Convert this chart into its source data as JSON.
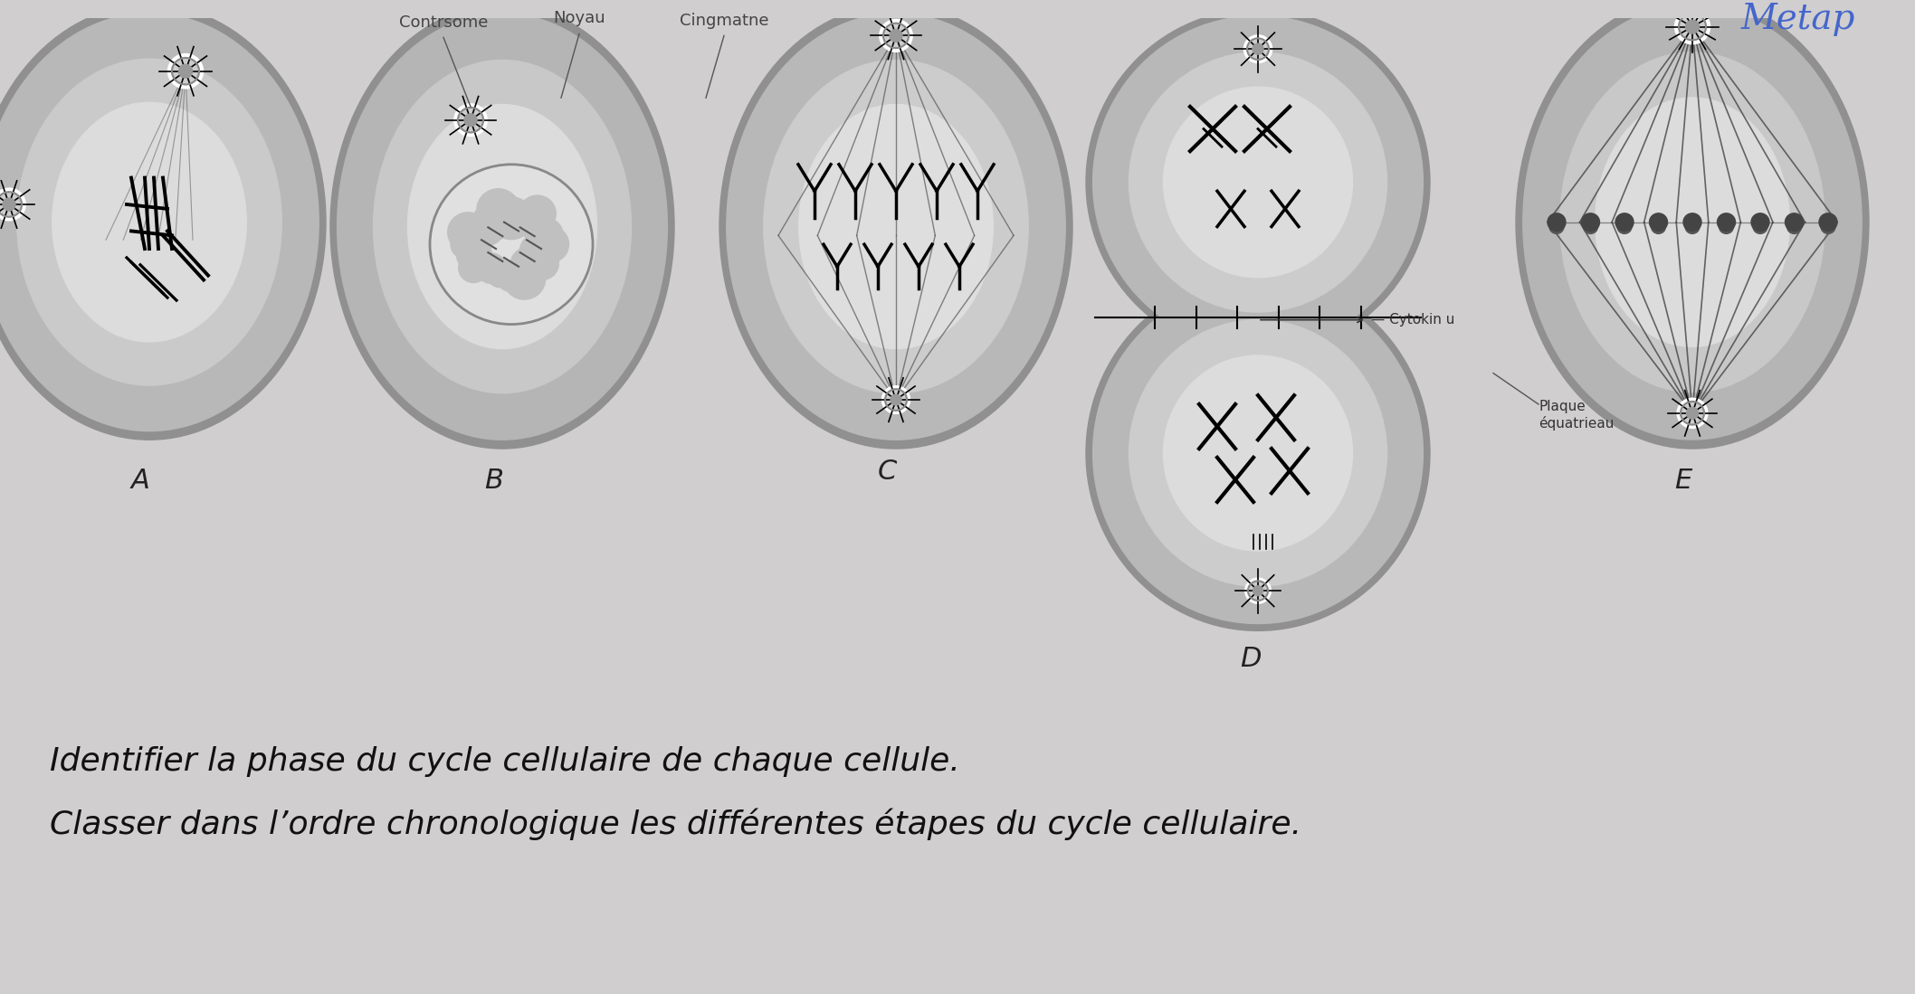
{
  "bg_color": "#d0cece",
  "cell_outer_color": "#b0b0b0",
  "cell_mid_color": "#c8c8c8",
  "cell_inner_color": "#d8d8d8",
  "cell_bright_color": "#e8e8e8",
  "chrom_color": "#1a1a1a",
  "annotation_color": "#333333",
  "handwritten_color": "#4466cc",
  "label_A": "A",
  "label_B": "B",
  "label_C": "C",
  "label_D": "D",
  "label_E": "E",
  "top_text1": "Contrsome",
  "top_text2": "Noyau",
  "top_text3": "Cingmatne",
  "annotation_right1": "— Cytokin u",
  "annotation_right2": "Plaque\néquatrieau",
  "handwritten_top": "Metap",
  "bottom_line1": "Identifier la phase du cycle cellulaire de chaque cellule.",
  "bottom_line2": "Classer dans l’ordre chronologique les différentes étapes du cycle cellulaire."
}
